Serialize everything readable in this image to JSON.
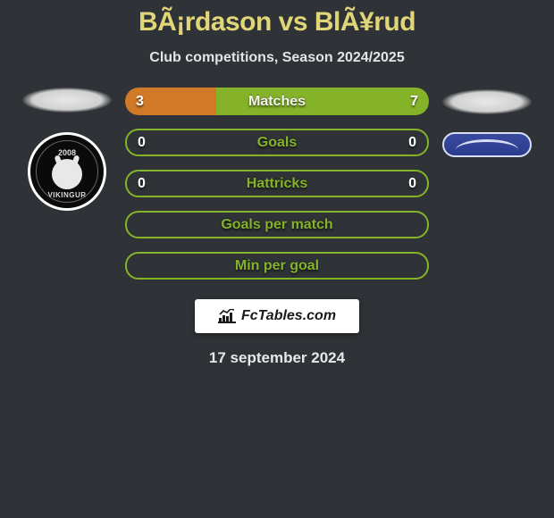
{
  "title": "BÃ¡rdason vs BlÃ¥rud",
  "subtitle": "Club competitions, Season 2024/2025",
  "date": "17 september 2024",
  "brand": "FcTables.com",
  "colors": {
    "title": "#e0d678",
    "subtitle": "#e4e4e4",
    "bg": "#2f3236",
    "bar_left_fill": "#d07a27",
    "bar_right_fill": "#84b32a",
    "bar_empty_border": "#84b32a",
    "text_white": "#ffffff"
  },
  "left_club": {
    "year": "2008",
    "name": "VIKINGUR"
  },
  "bars": [
    {
      "label": "Matches",
      "left_val": "3",
      "right_val": "7",
      "left_pct": 30,
      "right_pct": 70,
      "empty": false
    },
    {
      "label": "Goals",
      "left_val": "0",
      "right_val": "0",
      "left_pct": 0,
      "right_pct": 0,
      "empty": true
    },
    {
      "label": "Hattricks",
      "left_val": "0",
      "right_val": "0",
      "left_pct": 0,
      "right_pct": 0,
      "empty": true
    },
    {
      "label": "Goals per match",
      "left_val": "",
      "right_val": "",
      "left_pct": 0,
      "right_pct": 0,
      "empty": true
    },
    {
      "label": "Min per goal",
      "left_val": "",
      "right_val": "",
      "left_pct": 0,
      "right_pct": 0,
      "empty": true
    }
  ]
}
